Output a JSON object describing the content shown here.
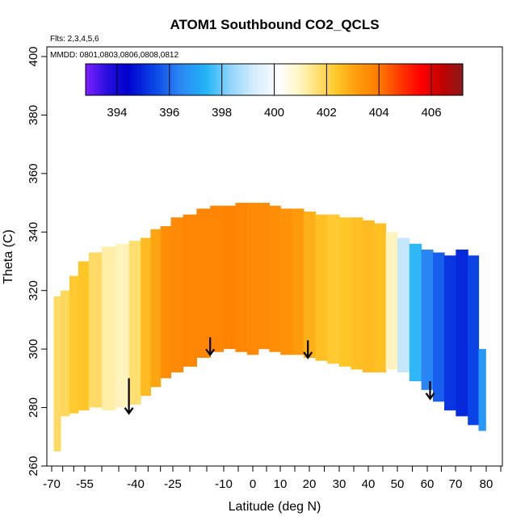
{
  "chart_data": {
    "type": "heatmap",
    "title": "ATOM1 Southbound CO2_QCLS",
    "flights_label": "Flts: 2,3,4,5,6",
    "dates_label": "MMDD: 0801,0803,0806,0808,0812",
    "xlabel": "Latitude (deg N)",
    "ylabel": "Theta (C)",
    "xlim": [
      -70,
      85
    ],
    "ylim": [
      260,
      405
    ],
    "x_major_ticks": [
      -70,
      -55,
      -40,
      -25,
      -10,
      0,
      10,
      20,
      30,
      40,
      50,
      60,
      70,
      80
    ],
    "x_minor_step": 5,
    "y_ticks": [
      260,
      280,
      300,
      320,
      340,
      360,
      380,
      400
    ],
    "colorbar": {
      "range": [
        392.8,
        407.2
      ],
      "ticks": [
        394,
        396,
        398,
        400,
        402,
        404,
        406
      ],
      "stops": [
        {
          "value": 392.8,
          "color": "#7f1fff"
        },
        {
          "value": 393.6,
          "color": "#2a0fe0"
        },
        {
          "value": 394.4,
          "color": "#0000cc"
        },
        {
          "value": 395.4,
          "color": "#0a44e6"
        },
        {
          "value": 396.4,
          "color": "#2b86f5"
        },
        {
          "value": 397.4,
          "color": "#22b4f6"
        },
        {
          "value": 398.3,
          "color": "#8ed4fb"
        },
        {
          "value": 399.2,
          "color": "#d3ecfd"
        },
        {
          "value": 400.2,
          "color": "#ffffff"
        },
        {
          "value": 400.9,
          "color": "#fff7c8"
        },
        {
          "value": 401.6,
          "color": "#ffe27a"
        },
        {
          "value": 402.4,
          "color": "#ffc628"
        },
        {
          "value": 403.2,
          "color": "#ff9a0b"
        },
        {
          "value": 404.0,
          "color": "#ff7a00"
        },
        {
          "value": 404.8,
          "color": "#ff3a00"
        },
        {
          "value": 405.6,
          "color": "#ff0000"
        },
        {
          "value": 406.4,
          "color": "#c20000"
        },
        {
          "value": 407.2,
          "color": "#8b1a1a"
        }
      ]
    },
    "profile_columns": [
      {
        "lat": -68,
        "theta_min": 265,
        "theta_max": 318,
        "co2": 401.8
      },
      {
        "lat": -64,
        "theta_min": 277,
        "theta_max": 320,
        "co2": 401.9
      },
      {
        "lat": -60,
        "theta_min": 278,
        "theta_max": 325,
        "co2": 402.3
      },
      {
        "lat": -56,
        "theta_min": 279,
        "theta_max": 330,
        "co2": 402.4
      },
      {
        "lat": -52,
        "theta_min": 280,
        "theta_max": 333,
        "co2": 401.8
      },
      {
        "lat": -48,
        "theta_min": 279,
        "theta_max": 335,
        "co2": 401.2
      },
      {
        "lat": -44,
        "theta_min": 280,
        "theta_max": 336,
        "co2": 401.0
      },
      {
        "lat": -40,
        "theta_min": 281,
        "theta_max": 337,
        "co2": 401.7
      },
      {
        "lat": -36,
        "theta_min": 284,
        "theta_max": 338,
        "co2": 402.6
      },
      {
        "lat": -32,
        "theta_min": 287,
        "theta_max": 341,
        "co2": 403.0
      },
      {
        "lat": -28,
        "theta_min": 290,
        "theta_max": 342,
        "co2": 403.5
      },
      {
        "lat": -24,
        "theta_min": 292,
        "theta_max": 345,
        "co2": 403.6
      },
      {
        "lat": -20,
        "theta_min": 294,
        "theta_max": 346,
        "co2": 403.7
      },
      {
        "lat": -16,
        "theta_min": 297,
        "theta_max": 348,
        "co2": 403.7
      },
      {
        "lat": -12,
        "theta_min": 299,
        "theta_max": 349,
        "co2": 403.7
      },
      {
        "lat": -8,
        "theta_min": 300,
        "theta_max": 349,
        "co2": 403.8
      },
      {
        "lat": -4,
        "theta_min": 299,
        "theta_max": 350,
        "co2": 403.7
      },
      {
        "lat": 0,
        "theta_min": 298,
        "theta_max": 350,
        "co2": 403.6
      },
      {
        "lat": 4,
        "theta_min": 300,
        "theta_max": 350,
        "co2": 403.6
      },
      {
        "lat": 8,
        "theta_min": 299,
        "theta_max": 349,
        "co2": 403.5
      },
      {
        "lat": 12,
        "theta_min": 298,
        "theta_max": 348,
        "co2": 403.4
      },
      {
        "lat": 16,
        "theta_min": 298,
        "theta_max": 348,
        "co2": 403.2
      },
      {
        "lat": 20,
        "theta_min": 297,
        "theta_max": 347,
        "co2": 402.8
      },
      {
        "lat": 24,
        "theta_min": 296,
        "theta_max": 346,
        "co2": 402.5
      },
      {
        "lat": 28,
        "theta_min": 295,
        "theta_max": 346,
        "co2": 402.3
      },
      {
        "lat": 32,
        "theta_min": 294,
        "theta_max": 345,
        "co2": 402.4
      },
      {
        "lat": 36,
        "theta_min": 293,
        "theta_max": 345,
        "co2": 402.5
      },
      {
        "lat": 40,
        "theta_min": 292,
        "theta_max": 344,
        "co2": 402.6
      },
      {
        "lat": 44,
        "theta_min": 292,
        "theta_max": 343,
        "co2": 402.5
      },
      {
        "lat": 48,
        "theta_min": 293,
        "theta_max": 340,
        "co2": 401.0
      },
      {
        "lat": 52,
        "theta_min": 292,
        "theta_max": 338,
        "co2": 399.0
      },
      {
        "lat": 56,
        "theta_min": 289,
        "theta_max": 336,
        "co2": 397.5
      },
      {
        "lat": 60,
        "theta_min": 286,
        "theta_max": 334,
        "co2": 396.4
      },
      {
        "lat": 64,
        "theta_min": 282,
        "theta_max": 333,
        "co2": 395.8
      },
      {
        "lat": 68,
        "theta_min": 279,
        "theta_max": 332,
        "co2": 395.2
      },
      {
        "lat": 72,
        "theta_min": 277,
        "theta_max": 334,
        "co2": 395.0
      },
      {
        "lat": 76,
        "theta_min": 274,
        "theta_max": 332,
        "co2": 395.4
      },
      {
        "lat": 79,
        "theta_min": 272,
        "theta_max": 300,
        "co2": 396.8
      }
    ],
    "arrows": [
      {
        "lat": -42,
        "theta_top": 290,
        "theta_bottom": 278
      },
      {
        "lat": -14,
        "theta_top": 304,
        "theta_bottom": 298
      },
      {
        "lat": 19.5,
        "theta_top": 303,
        "theta_bottom": 297
      },
      {
        "lat": 61,
        "theta_top": 289,
        "theta_bottom": 283
      }
    ]
  }
}
